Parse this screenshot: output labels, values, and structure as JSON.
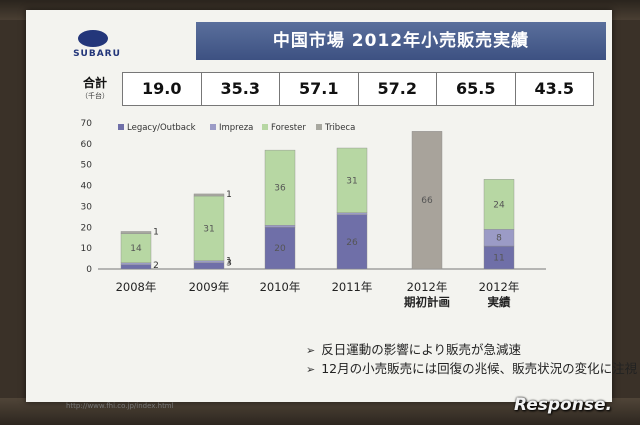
{
  "slide": {
    "title": "中国市場 2012年小売販売実績",
    "logo_text": "SUBARU",
    "totals_label": "合計",
    "totals_unit": "（千台）",
    "totals": [
      "19.0",
      "35.3",
      "57.1",
      "57.2",
      "65.5",
      "43.5"
    ],
    "bullets": [
      "反日運動の影響により販売が急減速",
      "12月の小売販売には回復の兆候、販売状況の変化に注視"
    ],
    "url": "http://www.fhi.co.jp/index.html",
    "watermark": "Response."
  },
  "colors": {
    "legacy": "#6f6fa8",
    "impreza": "#9b9bc6",
    "forester": "#b7d7a3",
    "tribeca": "#a8a8a0",
    "plan": "#a8a39b",
    "title_band": "#475b8c",
    "logo": "#23367a"
  },
  "chart_data": {
    "type": "bar",
    "stacked": true,
    "categories": [
      "2008年",
      "2009年",
      "2010年",
      "2011年",
      "2012年\n期初計画",
      "2012年\n実績"
    ],
    "series": [
      {
        "name": "Legacy/Outback",
        "values": [
          2,
          3,
          20,
          26,
          null,
          11
        ]
      },
      {
        "name": "Impreza",
        "values": [
          1,
          1,
          1,
          1,
          null,
          8
        ]
      },
      {
        "name": "Forester",
        "values": [
          14,
          31,
          36,
          31,
          null,
          24
        ]
      },
      {
        "name": "Tribeca",
        "values": [
          1,
          1,
          0,
          0,
          null,
          0
        ]
      },
      {
        "name": "",
        "values": [
          null,
          null,
          null,
          null,
          66,
          null
        ]
      }
    ],
    "data_labels": [
      [
        "2",
        "",
        "14",
        "1"
      ],
      [
        "3",
        "1",
        "31",
        "1"
      ],
      [
        "20",
        "",
        "36",
        ""
      ],
      [
        "26",
        "",
        "31",
        ""
      ],
      [
        "66"
      ],
      [
        "11",
        "8",
        "24",
        ""
      ]
    ],
    "yticks": [
      0,
      10,
      20,
      30,
      40,
      50,
      60,
      70
    ],
    "ylim": [
      0,
      70
    ],
    "legend_position": "top"
  }
}
